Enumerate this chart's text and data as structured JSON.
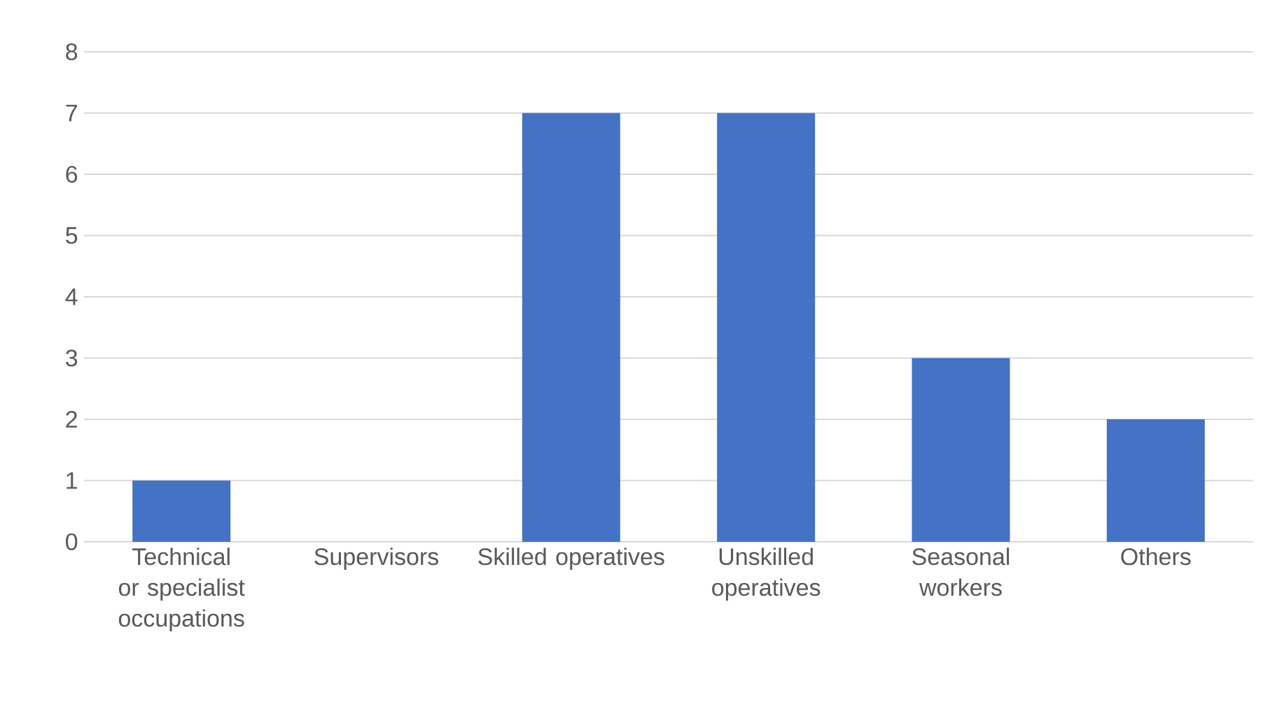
{
  "chart_data": {
    "type": "bar",
    "categories": [
      "Technical or specialist occupations",
      "Supervisors",
      "Skilled operatives",
      "Unskilled operatives",
      "Seasonal workers",
      "Others"
    ],
    "values": [
      1,
      0,
      7,
      7,
      3,
      2
    ],
    "color": "#4472c4",
    "ylim": [
      0,
      8
    ],
    "yticks": [
      0,
      1,
      2,
      3,
      4,
      5,
      6,
      7,
      8
    ],
    "grid": "y"
  }
}
